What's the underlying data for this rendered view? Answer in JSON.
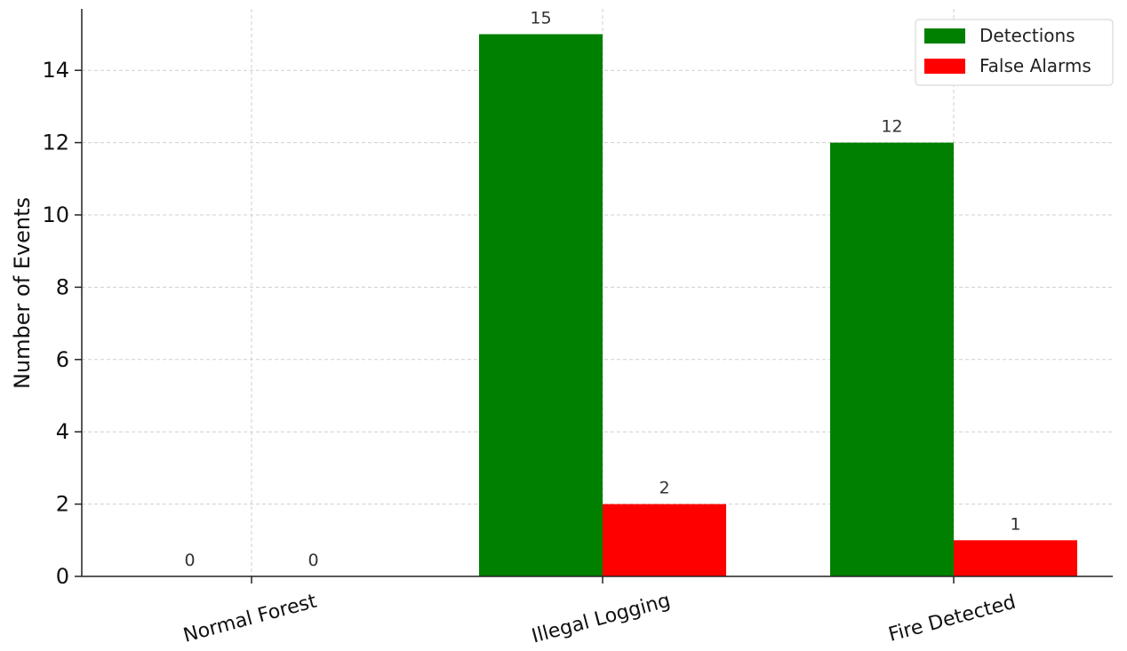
{
  "chart_data": {
    "type": "bar",
    "title": "",
    "xlabel": "",
    "ylabel": "Number of Events",
    "categories": [
      "Normal Forest",
      "Illegal Logging",
      "Fire Detected"
    ],
    "series": [
      {
        "name": "Detections",
        "color": "#008000",
        "values": [
          0,
          15,
          12
        ]
      },
      {
        "name": "False Alarms",
        "color": "#ff0000",
        "values": [
          0,
          2,
          1
        ]
      }
    ],
    "yticks": [
      0,
      2,
      4,
      6,
      8,
      10,
      12,
      14
    ],
    "ylim": [
      0,
      15.7
    ],
    "grid": true,
    "legend_position": "top-right"
  }
}
